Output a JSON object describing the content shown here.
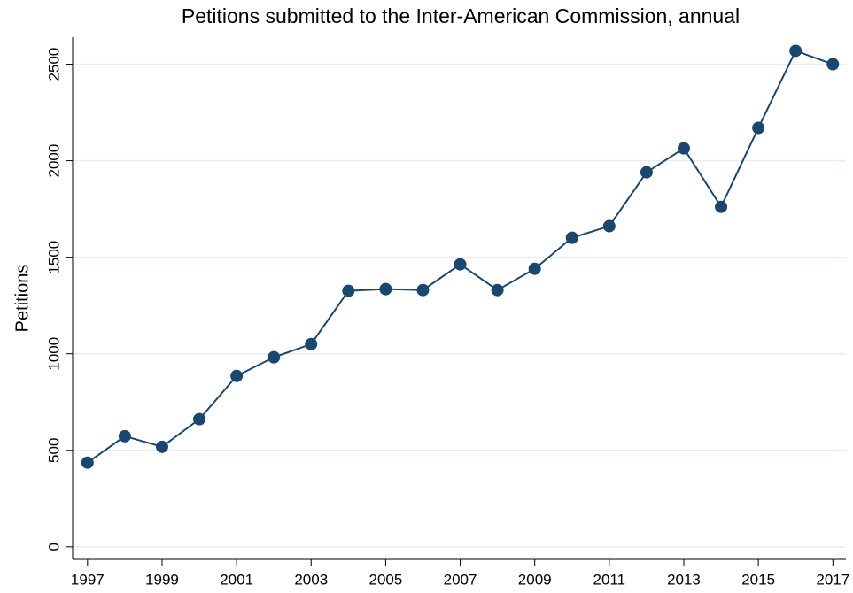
{
  "chart_data": {
    "type": "line",
    "title": "Petitions submitted to the Inter-American Commission, annual",
    "y_label": "Petitions",
    "x": [
      1997,
      1998,
      1999,
      2000,
      2001,
      2002,
      2003,
      2004,
      2005,
      2006,
      2007,
      2008,
      2009,
      2010,
      2011,
      2012,
      2013,
      2014,
      2015,
      2016,
      2017
    ],
    "values": [
      436,
      573,
      518,
      661,
      885,
      982,
      1050,
      1326,
      1335,
      1330,
      1463,
      1330,
      1440,
      1601,
      1661,
      1940,
      2064,
      1761,
      2170,
      2569,
      2500
    ],
    "color": "#1a476f",
    "xlim": [
      1996.6,
      2017.35
    ],
    "xticks": [
      1997,
      1999,
      2001,
      2003,
      2005,
      2007,
      2009,
      2011,
      2013,
      2015,
      2017
    ],
    "ylim": [
      -65,
      2640
    ],
    "yticks": [
      0,
      500,
      1000,
      1500,
      2000,
      2500
    ],
    "grid": true
  }
}
